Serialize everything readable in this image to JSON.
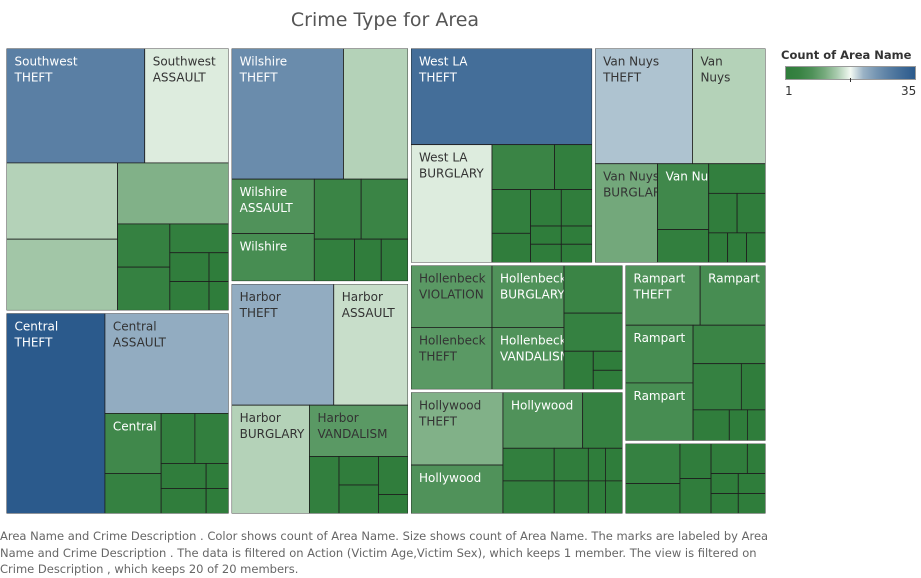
{
  "title": "Crime Type for Area",
  "legend": {
    "title": "Count of Area Name",
    "min": "1",
    "max": "35"
  },
  "caption": "Area Name and Crime  Description .  Color shows count of Area Name.  Size shows count of Area Name.  The marks are labeled by Area Name and Crime  Description . The data is filtered on Action (Victim Age,Victim Sex), which keeps 1 member. The view is filtered on Crime  Description , which keeps 20 of 20 members.",
  "chart_data": {
    "type": "treemap",
    "title": "Crime Type for Area",
    "measure": "Count of Area Name",
    "color_range": [
      1,
      35
    ],
    "color_scale": {
      "low": "#2f7d3b",
      "mid": "#f3faf3",
      "high": "#2b5a8c"
    },
    "areas": [
      {
        "area": "Southwest",
        "cells": [
          {
            "label": [
              "Southwest",
              "THEFT"
            ],
            "value": 28
          },
          {
            "label": [
              "Southwest",
              "ASSAULT"
            ],
            "value": 17
          },
          {
            "label": [],
            "value": 15
          },
          {
            "label": [],
            "value": 14
          },
          {
            "label": [],
            "value": 12
          },
          {
            "label": [],
            "value": 4
          },
          {
            "label": [],
            "value": 4
          },
          {
            "label": [],
            "value": 3
          },
          {
            "label": [],
            "value": 2
          },
          {
            "label": [],
            "value": 2
          },
          {
            "label": [],
            "value": 1
          },
          {
            "label": [],
            "value": 1
          }
        ]
      },
      {
        "area": "Central",
        "cells": [
          {
            "label": [
              "Central",
              "THEFT"
            ],
            "value": 35
          },
          {
            "label": [
              "Central",
              "ASSAULT"
            ],
            "value": 22
          },
          {
            "label": [
              "Central"
            ],
            "value": 6
          },
          {
            "label": [],
            "value": 4
          },
          {
            "label": [],
            "value": 3
          },
          {
            "label": [],
            "value": 3
          },
          {
            "label": [],
            "value": 2
          },
          {
            "label": [],
            "value": 2
          },
          {
            "label": [],
            "value": 1
          },
          {
            "label": [],
            "value": 1
          }
        ]
      },
      {
        "area": "Harbor",
        "cells": [
          {
            "label": [
              "Harbor",
              "THEFT"
            ],
            "value": 22
          },
          {
            "label": [
              "Harbor",
              "BURGLARY"
            ],
            "value": 15
          },
          {
            "label": [
              "Harbor",
              "ASSAULT"
            ],
            "value": 16
          },
          {
            "label": [
              "Harbor",
              "VANDALISM"
            ],
            "value": 9
          },
          {
            "label": [],
            "value": 3
          },
          {
            "label": [],
            "value": 2
          },
          {
            "label": [],
            "value": 2
          },
          {
            "label": [],
            "value": 2
          },
          {
            "label": [],
            "value": 1
          }
        ]
      },
      {
        "area": "Wilshire",
        "cells": [
          {
            "label": [
              "Wilshire",
              "THEFT"
            ],
            "value": 26
          },
          {
            "label": [],
            "value": 15
          },
          {
            "label": [
              "Wilshire",
              "ASSAULT"
            ],
            "value": 8
          },
          {
            "label": [
              "Wilshire"
            ],
            "value": 7
          },
          {
            "label": [],
            "value": 5
          },
          {
            "label": [],
            "value": 5
          },
          {
            "label": [],
            "value": 3
          },
          {
            "label": [],
            "value": 2
          },
          {
            "label": [],
            "value": 2
          }
        ]
      },
      {
        "area": "Van Nuys",
        "cells": [
          {
            "label": [
              "Van Nuys",
              "THEFT"
            ],
            "value": 20
          },
          {
            "label": [
              "Van",
              "Nuys"
            ],
            "value": 15
          },
          {
            "label": [
              "Van Nuys",
              "BURGLARY"
            ],
            "value": 11
          },
          {
            "label": [
              "Van Nuys"
            ],
            "value": 6
          },
          {
            "label": [],
            "value": 3
          },
          {
            "label": [],
            "value": 3
          },
          {
            "label": [],
            "value": 2
          },
          {
            "label": [],
            "value": 2
          },
          {
            "label": [],
            "value": 1
          },
          {
            "label": [],
            "value": 1
          },
          {
            "label": [],
            "value": 1
          }
        ]
      },
      {
        "area": "West LA",
        "cells": [
          {
            "label": [
              "West LA",
              "THEFT"
            ],
            "value": 31
          },
          {
            "label": [
              "West LA",
              "BURGLARY"
            ],
            "value": 17
          },
          {
            "label": [],
            "value": 5
          },
          {
            "label": [],
            "value": 3
          },
          {
            "label": [],
            "value": 3
          },
          {
            "label": [],
            "value": 2
          },
          {
            "label": [],
            "value": 2
          },
          {
            "label": [],
            "value": 2
          },
          {
            "label": [],
            "value": 1
          },
          {
            "label": [],
            "value": 1
          },
          {
            "label": [],
            "value": 1
          },
          {
            "label": [],
            "value": 1
          }
        ]
      },
      {
        "area": "Hollenbeck",
        "cells": [
          {
            "label": [
              "Hollenbeck",
              "VIOLATION"
            ],
            "value": 9
          },
          {
            "label": [
              "Hollenbeck",
              "THEFT"
            ],
            "value": 9
          },
          {
            "label": [
              "Hollenbeck",
              "BURGLARY"
            ],
            "value": 8
          },
          {
            "label": [
              "Hollenbeck",
              "VANDALISM"
            ],
            "value": 8
          },
          {
            "label": [],
            "value": 5
          },
          {
            "label": [],
            "value": 4
          },
          {
            "label": [],
            "value": 2
          },
          {
            "label": [],
            "value": 1
          },
          {
            "label": [],
            "value": 1
          }
        ]
      },
      {
        "area": "Hollywood",
        "cells": [
          {
            "label": [
              "Hollywood",
              "THEFT"
            ],
            "value": 12
          },
          {
            "label": [
              "Hollywood"
            ],
            "value": 8
          },
          {
            "label": [
              "Hollywood"
            ],
            "value": 8
          },
          {
            "label": [],
            "value": 4
          },
          {
            "label": [],
            "value": 3
          },
          {
            "label": [],
            "value": 3
          },
          {
            "label": [],
            "value": 2
          },
          {
            "label": [],
            "value": 2
          },
          {
            "label": [],
            "value": 1
          },
          {
            "label": [],
            "value": 1
          },
          {
            "label": [],
            "value": 1
          },
          {
            "label": [],
            "value": 1
          }
        ]
      },
      {
        "area": "Rampart",
        "cells": [
          {
            "label": [
              "Rampart",
              "THEFT"
            ],
            "value": 8
          },
          {
            "label": [
              "Rampart"
            ],
            "value": 7
          },
          {
            "label": [
              "Rampart"
            ],
            "value": 7
          },
          {
            "label": [
              "Rampart"
            ],
            "value": 7
          },
          {
            "label": [],
            "value": 5
          },
          {
            "label": [],
            "value": 4
          },
          {
            "label": [],
            "value": 2
          },
          {
            "label": [],
            "value": 2
          },
          {
            "label": [],
            "value": 1
          },
          {
            "label": [],
            "value": 1
          }
        ]
      },
      {
        "area": "",
        "cells": [
          {
            "label": [],
            "value": 4
          },
          {
            "label": [],
            "value": 3
          },
          {
            "label": [],
            "value": 2
          },
          {
            "label": [],
            "value": 2
          },
          {
            "label": [],
            "value": 2
          },
          {
            "label": [],
            "value": 1
          },
          {
            "label": [],
            "value": 1
          },
          {
            "label": [],
            "value": 1
          },
          {
            "label": [],
            "value": 1
          },
          {
            "label": [],
            "value": 1
          }
        ]
      }
    ]
  }
}
